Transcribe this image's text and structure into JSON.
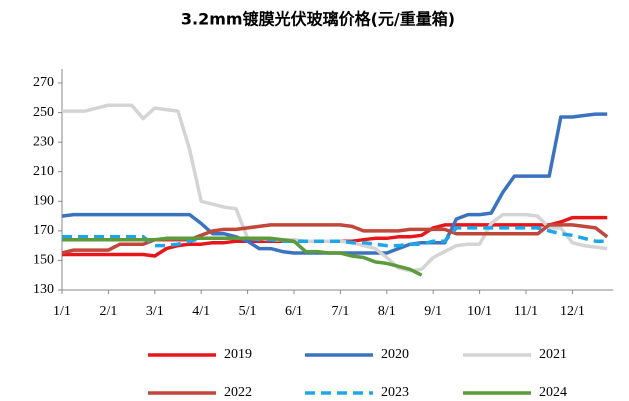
{
  "chart_data": {
    "type": "line",
    "title": "3.2mm镀膜光伏玻璃价格(元/重量箱)",
    "categories": [
      "1/1",
      null,
      null,
      null,
      "2/1",
      null,
      null,
      null,
      "3/1",
      null,
      null,
      null,
      "4/1",
      null,
      null,
      null,
      "5/1",
      null,
      null,
      null,
      "6/1",
      null,
      null,
      null,
      "7/1",
      null,
      null,
      null,
      "8/1",
      null,
      null,
      null,
      "9/1",
      null,
      null,
      null,
      "10/1",
      null,
      null,
      null,
      "11/1",
      null,
      null,
      null,
      "12/1",
      null,
      null,
      null
    ],
    "ylim": [
      130,
      270
    ],
    "yticks": [
      130,
      150,
      170,
      190,
      210,
      230,
      250,
      270
    ],
    "grid": false,
    "legend": "bottom",
    "series": [
      {
        "name": "2019",
        "color": "#e8161a",
        "style": "solid",
        "values": [
          154,
          154,
          154,
          154,
          154,
          154,
          154,
          154,
          153,
          158,
          160,
          161,
          161,
          162,
          162,
          163,
          163,
          163,
          163,
          163,
          163,
          163,
          163,
          163,
          163,
          163,
          164,
          165,
          165,
          166,
          166,
          167,
          172,
          174,
          174,
          174,
          174,
          174,
          174,
          174,
          174,
          174,
          174,
          176,
          179,
          179,
          179,
          179
        ]
      },
      {
        "name": "2020",
        "color": "#3b73c1",
        "style": "solid",
        "values": [
          180,
          181,
          181,
          181,
          181,
          181,
          181,
          181,
          181,
          181,
          181,
          181,
          175,
          168,
          168,
          166,
          163,
          158,
          158,
          156,
          155,
          155,
          155,
          155,
          155,
          155,
          155,
          155,
          155,
          158,
          161,
          162,
          162,
          162,
          178,
          181,
          181,
          182,
          196,
          207,
          207,
          207,
          207,
          247,
          247,
          248,
          249,
          249
        ]
      },
      {
        "name": "2021",
        "color": "#d4d4d4",
        "style": "solid",
        "values": [
          251,
          251,
          251,
          253,
          255,
          255,
          255,
          246,
          253,
          252,
          251,
          225,
          190,
          188,
          186,
          185,
          165,
          165,
          164,
          164,
          164,
          163,
          163,
          163,
          163,
          162,
          160,
          158,
          152,
          145,
          143,
          144,
          152,
          156,
          160,
          161,
          161,
          175,
          181,
          181,
          181,
          180,
          172,
          172,
          162,
          160,
          159,
          158
        ]
      },
      {
        "name": "2022",
        "color": "#c0473a",
        "style": "solid",
        "values": [
          155,
          157,
          157,
          157,
          157,
          161,
          161,
          161,
          164,
          164,
          164,
          164,
          167,
          170,
          171,
          171,
          172,
          173,
          174,
          174,
          174,
          174,
          174,
          174,
          174,
          173,
          170,
          170,
          170,
          170,
          171,
          171,
          171,
          171,
          168,
          168,
          168,
          168,
          168,
          168,
          168,
          168,
          174,
          174,
          174,
          173,
          172,
          166
        ]
      },
      {
        "name": "2023",
        "color": "#1ea7e8",
        "style": "dashed",
        "values": [
          166,
          166,
          166,
          166,
          166,
          166,
          166,
          166,
          160,
          160,
          161,
          163,
          165,
          165,
          165,
          165,
          165,
          164,
          164,
          163,
          163,
          163,
          163,
          163,
          163,
          162,
          162,
          161,
          160,
          160,
          161,
          161,
          163,
          163,
          172,
          172,
          172,
          172,
          172,
          172,
          172,
          172,
          170,
          168,
          167,
          165,
          163,
          163
        ]
      },
      {
        "name": "2024",
        "color": "#5c9a3c",
        "style": "solid",
        "values": [
          164,
          164,
          164,
          164,
          164,
          164,
          164,
          164,
          164,
          165,
          165,
          165,
          165,
          165,
          165,
          165,
          165,
          165,
          165,
          164,
          163,
          156,
          156,
          155,
          155,
          153,
          152,
          149,
          148,
          146,
          144,
          140,
          null,
          null,
          null,
          null,
          null,
          null,
          null,
          null,
          null,
          null,
          null,
          null,
          null,
          null,
          null,
          null
        ]
      }
    ]
  }
}
